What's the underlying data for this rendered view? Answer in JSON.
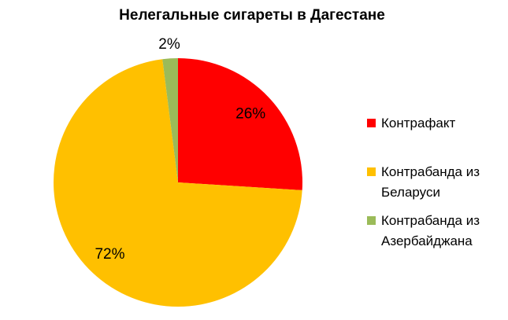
{
  "chart_data": {
    "type": "pie",
    "title": "Нелегальные сигареты в Дагестане",
    "categories": [
      "Контрафакт",
      "Контрабанда из Беларуси",
      "Контрабанда из Азербайджана"
    ],
    "values": [
      26,
      72,
      2
    ],
    "value_labels": [
      "26%",
      "72%",
      "2%"
    ],
    "colors": [
      "#ff0000",
      "#ffc000",
      "#9bbb59"
    ]
  }
}
